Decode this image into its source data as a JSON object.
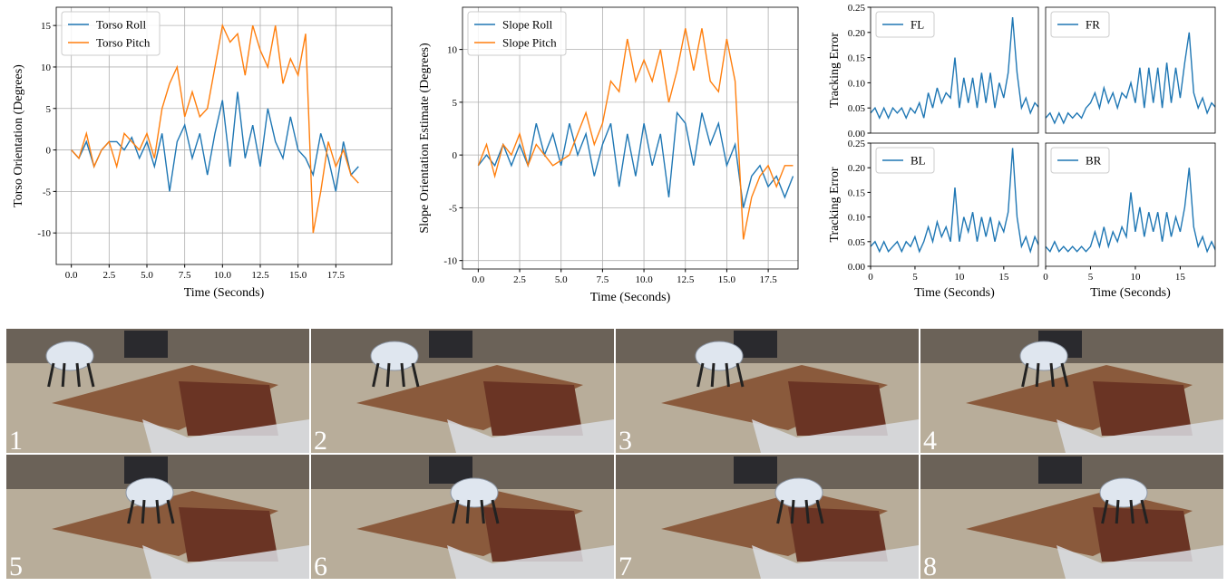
{
  "chart_data": [
    {
      "type": "line",
      "xlabel": "Time (Seconds)",
      "ylabel": "Torso Orientation (Degrees)",
      "grid": true,
      "legend": "upper left",
      "x": [
        0,
        0.5,
        1,
        1.5,
        2,
        2.5,
        3,
        3.5,
        4,
        4.5,
        5,
        5.5,
        6,
        6.5,
        7,
        7.5,
        8,
        8.5,
        9,
        9.5,
        10,
        10.5,
        11,
        11.5,
        12,
        12.5,
        13,
        13.5,
        14,
        14.5,
        15,
        15.5,
        16,
        16.5,
        17,
        17.5,
        18,
        18.5,
        19
      ],
      "xlim": [
        -1,
        21.2
      ],
      "ylim": [
        -13.8,
        17.2
      ],
      "xticks": [
        {
          "value": 0,
          "label": "0.0"
        },
        2.5,
        {
          "value": 5,
          "label": "5.0"
        },
        7.5,
        {
          "value": 10,
          "label": "10.0"
        },
        12.5,
        {
          "value": 15,
          "label": "15.0"
        },
        17.5
      ],
      "yticks": [
        -10,
        -5,
        0,
        5,
        10,
        15
      ],
      "series": [
        {
          "name": "Torso Roll",
          "color": "#1f77b4",
          "values": [
            0,
            -1,
            1,
            -2,
            0,
            1,
            1,
            0,
            1.5,
            -1,
            1,
            -2,
            2,
            -5,
            1,
            3,
            -1,
            2,
            -3,
            2,
            6,
            -2,
            7,
            -1,
            3,
            -2,
            5,
            1,
            -1,
            4,
            0,
            -1,
            -3,
            2,
            -1,
            -5,
            1,
            -3,
            -2
          ]
        },
        {
          "name": "Torso Pitch",
          "color": "#ff7f0e",
          "values": [
            0,
            -1,
            2,
            -2,
            0,
            1,
            -2,
            2,
            1,
            0,
            2,
            -1,
            5,
            8,
            10,
            4,
            7,
            4,
            5,
            10,
            15,
            13,
            14,
            9,
            15,
            12,
            10,
            15,
            8,
            11,
            9,
            14,
            -10,
            -5,
            1,
            -2,
            0,
            -3,
            -4
          ]
        }
      ]
    },
    {
      "type": "line",
      "xlabel": "Time (Seconds)",
      "ylabel": "Slope Orientation Estimate (Degrees)",
      "grid": true,
      "legend": "upper left",
      "x": [
        0,
        0.5,
        1,
        1.5,
        2,
        2.5,
        3,
        3.5,
        4,
        4.5,
        5,
        5.5,
        6,
        6.5,
        7,
        7.5,
        8,
        8.5,
        9,
        9.5,
        10,
        10.5,
        11,
        11.5,
        12,
        12.5,
        13,
        13.5,
        14,
        14.5,
        15,
        15.5,
        16,
        16.5,
        17,
        17.5,
        18,
        18.5,
        19
      ],
      "xlim": [
        -0.95,
        19.3
      ],
      "ylim": [
        -10.8,
        14
      ],
      "xticks": [
        {
          "value": 0,
          "label": "0.0"
        },
        2.5,
        {
          "value": 5,
          "label": "5.0"
        },
        7.5,
        {
          "value": 10,
          "label": "10.0"
        },
        12.5,
        {
          "value": 15,
          "label": "15.0"
        },
        17.5
      ],
      "yticks": [
        -10,
        -5,
        0,
        5,
        10
      ],
      "series": [
        {
          "name": "Slope Roll",
          "color": "#1f77b4",
          "values": [
            -1,
            0,
            -1,
            1,
            -1,
            1,
            -1,
            3,
            0,
            2,
            -1,
            3,
            0,
            2,
            -2,
            1,
            3,
            -3,
            2,
            -2,
            3,
            -1,
            2,
            -4,
            4,
            3,
            -1,
            4,
            1,
            3,
            -1,
            1,
            -5,
            -2,
            -1,
            -3,
            -2,
            -4,
            -2
          ]
        },
        {
          "name": "Slope Pitch",
          "color": "#ff7f0e",
          "values": [
            -1,
            1,
            -2,
            1,
            0,
            2,
            -1,
            1,
            0,
            -1,
            -0.5,
            0,
            2,
            4,
            1,
            3,
            7,
            6,
            11,
            7,
            9,
            7,
            10,
            5,
            8,
            12,
            8,
            12,
            7,
            6,
            11,
            7,
            -8,
            -4,
            -2,
            -1,
            -3,
            -1,
            -1
          ]
        }
      ]
    },
    {
      "type": "line",
      "ylabel": "Tracking Error",
      "grid": false,
      "legend": "upper left",
      "x": [
        0,
        0.5,
        1,
        1.5,
        2,
        2.5,
        3,
        3.5,
        4,
        4.5,
        5,
        5.5,
        6,
        6.5,
        7,
        7.5,
        8,
        8.5,
        9,
        9.5,
        10,
        10.5,
        11,
        11.5,
        12,
        12.5,
        13,
        13.5,
        14,
        14.5,
        15,
        15.5,
        16,
        16.5,
        17,
        17.5,
        18,
        18.5,
        19
      ],
      "xlim": [
        0,
        18.9
      ],
      "ylim": [
        0,
        0.25
      ],
      "yticks": [
        {
          "value": 0,
          "label": "0.00"
        },
        0.05,
        {
          "value": 0.1,
          "label": "0.10"
        },
        0.15,
        {
          "value": 0.2,
          "label": "0.20"
        },
        0.25
      ],
      "series": [
        {
          "name": "FL",
          "color": "#1f77b4",
          "values": [
            0.04,
            0.05,
            0.03,
            0.05,
            0.03,
            0.05,
            0.04,
            0.05,
            0.03,
            0.05,
            0.04,
            0.06,
            0.03,
            0.08,
            0.05,
            0.09,
            0.06,
            0.08,
            0.07,
            0.15,
            0.05,
            0.11,
            0.06,
            0.11,
            0.05,
            0.12,
            0.06,
            0.12,
            0.05,
            0.1,
            0.07,
            0.12,
            0.23,
            0.12,
            0.05,
            0.07,
            0.04,
            0.06,
            0.05
          ]
        }
      ]
    },
    {
      "type": "line",
      "grid": false,
      "legend": "upper left",
      "x": [
        0,
        0.5,
        1,
        1.5,
        2,
        2.5,
        3,
        3.5,
        4,
        4.5,
        5,
        5.5,
        6,
        6.5,
        7,
        7.5,
        8,
        8.5,
        9,
        9.5,
        10,
        10.5,
        11,
        11.5,
        12,
        12.5,
        13,
        13.5,
        14,
        14.5,
        15,
        15.5,
        16,
        16.5,
        17,
        17.5,
        18,
        18.5,
        19
      ],
      "xlim": [
        0,
        18.9
      ],
      "ylim": [
        0,
        0.25
      ],
      "series": [
        {
          "name": "FR",
          "color": "#1f77b4",
          "values": [
            0.03,
            0.04,
            0.02,
            0.04,
            0.02,
            0.04,
            0.03,
            0.04,
            0.03,
            0.05,
            0.06,
            0.08,
            0.05,
            0.09,
            0.06,
            0.08,
            0.05,
            0.08,
            0.07,
            0.1,
            0.06,
            0.13,
            0.05,
            0.13,
            0.06,
            0.13,
            0.05,
            0.14,
            0.06,
            0.13,
            0.07,
            0.14,
            0.2,
            0.08,
            0.05,
            0.07,
            0.04,
            0.06,
            0.05
          ]
        }
      ]
    },
    {
      "type": "line",
      "xlabel": "Time (Seconds)",
      "ylabel": "Tracking Error",
      "grid": false,
      "legend": "upper left",
      "x": [
        0,
        0.5,
        1,
        1.5,
        2,
        2.5,
        3,
        3.5,
        4,
        4.5,
        5,
        5.5,
        6,
        6.5,
        7,
        7.5,
        8,
        8.5,
        9,
        9.5,
        10,
        10.5,
        11,
        11.5,
        12,
        12.5,
        13,
        13.5,
        14,
        14.5,
        15,
        15.5,
        16,
        16.5,
        17,
        17.5,
        18,
        18.5,
        19
      ],
      "xlim": [
        0,
        18.9
      ],
      "ylim": [
        0,
        0.25
      ],
      "xticks": [
        0,
        5,
        10,
        15
      ],
      "yticks": [
        {
          "value": 0,
          "label": "0.00"
        },
        0.05,
        {
          "value": 0.1,
          "label": "0.10"
        },
        0.15,
        {
          "value": 0.2,
          "label": "0.20"
        },
        0.25
      ],
      "series": [
        {
          "name": "BL",
          "color": "#1f77b4",
          "values": [
            0.04,
            0.05,
            0.03,
            0.05,
            0.03,
            0.04,
            0.05,
            0.03,
            0.05,
            0.04,
            0.06,
            0.03,
            0.05,
            0.08,
            0.05,
            0.09,
            0.06,
            0.08,
            0.05,
            0.16,
            0.05,
            0.1,
            0.07,
            0.11,
            0.05,
            0.1,
            0.06,
            0.1,
            0.05,
            0.09,
            0.07,
            0.11,
            0.24,
            0.1,
            0.04,
            0.06,
            0.03,
            0.06,
            0.04
          ]
        }
      ]
    },
    {
      "type": "line",
      "xlabel": "Time (Seconds)",
      "grid": false,
      "legend": "upper left",
      "x": [
        0,
        0.5,
        1,
        1.5,
        2,
        2.5,
        3,
        3.5,
        4,
        4.5,
        5,
        5.5,
        6,
        6.5,
        7,
        7.5,
        8,
        8.5,
        9,
        9.5,
        10,
        10.5,
        11,
        11.5,
        12,
        12.5,
        13,
        13.5,
        14,
        14.5,
        15,
        15.5,
        16,
        16.5,
        17,
        17.5,
        18,
        18.5,
        19
      ],
      "xlim": [
        0,
        18.9
      ],
      "ylim": [
        0,
        0.25
      ],
      "xticks": [
        0,
        5,
        10,
        15
      ],
      "series": [
        {
          "name": "BR",
          "color": "#1f77b4",
          "values": [
            0.04,
            0.03,
            0.05,
            0.03,
            0.04,
            0.03,
            0.04,
            0.03,
            0.04,
            0.03,
            0.04,
            0.07,
            0.04,
            0.08,
            0.04,
            0.07,
            0.05,
            0.08,
            0.06,
            0.15,
            0.07,
            0.12,
            0.06,
            0.11,
            0.07,
            0.11,
            0.05,
            0.11,
            0.06,
            0.1,
            0.07,
            0.12,
            0.2,
            0.08,
            0.04,
            0.06,
            0.03,
            0.05,
            0.03
          ]
        }
      ]
    }
  ],
  "photo_frames": [
    "1",
    "2",
    "3",
    "4",
    "5",
    "6",
    "7",
    "8"
  ]
}
